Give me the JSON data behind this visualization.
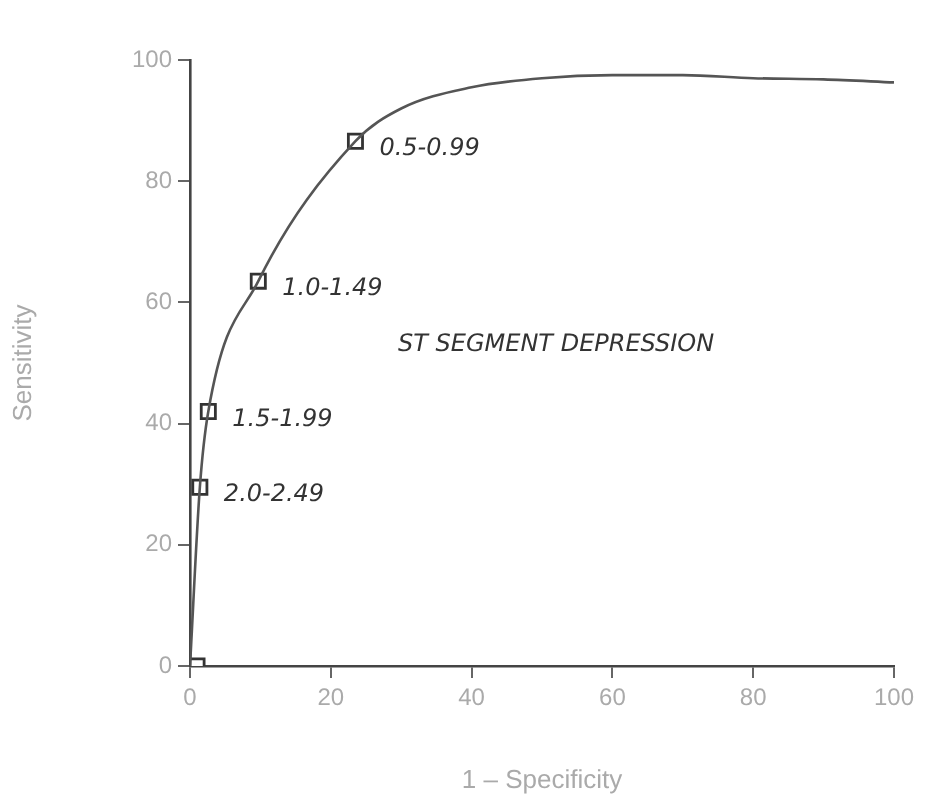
{
  "chart_data": {
    "type": "line",
    "xlabel": "1 – Specificity",
    "ylabel": "Sensitivity",
    "xlim": [
      0,
      100
    ],
    "ylim": [
      0,
      100
    ],
    "xticks": [
      0,
      20,
      40,
      60,
      80,
      100
    ],
    "yticks": [
      0,
      20,
      40,
      60,
      80,
      100
    ],
    "grid": false,
    "series": [
      {
        "type": "line",
        "color": "#555555",
        "marker": "none",
        "x": [
          0,
          1.4,
          2.6,
          9.7,
          23.5,
          30,
          40,
          50,
          60,
          70,
          80,
          90,
          100
        ],
        "values": [
          0,
          29.5,
          42,
          63.5,
          86.6,
          92,
          95.5,
          97,
          97.5,
          97.5,
          97,
          96.8,
          96.3
        ]
      },
      {
        "type": "scatter",
        "color": "#333333",
        "marker": "square",
        "x": [
          1.4,
          2.6,
          9.7,
          23.5
        ],
        "values": [
          29.5,
          42,
          63.5,
          86.6
        ]
      },
      {
        "type": "scatter",
        "color": "#333333",
        "marker": "square",
        "x": [
          1
        ],
        "values": [
          0
        ]
      }
    ],
    "annotations": [
      {
        "text": "2.0-2.49",
        "x": 1.4,
        "y": 29.5
      },
      {
        "text": "1.5-1.99",
        "x": 2.6,
        "y": 42
      },
      {
        "text": "1.0-1.49",
        "x": 9.7,
        "y": 63.5
      },
      {
        "text": "0.5-0.99",
        "x": 23.5,
        "y": 86.6
      },
      "ST SEGMENT DEPRESSION"
    ]
  }
}
